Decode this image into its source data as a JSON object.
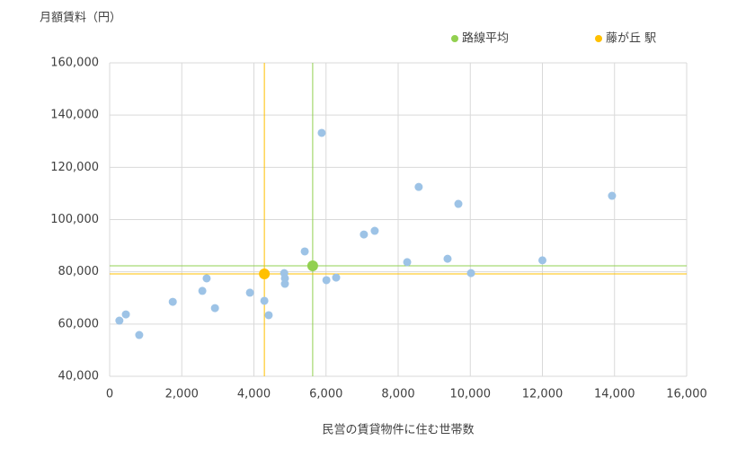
{
  "chart_data": {
    "type": "scatter",
    "title": "月額賃料（円）",
    "x_label": "民営の賃貸物件に住む世帯数",
    "xlim": [
      0,
      16000
    ],
    "xticks": [
      0,
      {
        "value": 2000,
        "label": "2,000"
      },
      {
        "value": 4000,
        "label": "4,000"
      },
      {
        "value": 6000,
        "label": "6,000"
      },
      {
        "value": 8000,
        "label": "8,000"
      },
      {
        "value": 10000,
        "label": "10,000"
      },
      {
        "value": 12000,
        "label": "12,000"
      },
      {
        "value": 14000,
        "label": "14,000"
      },
      {
        "value": 16000,
        "label": "16,000"
      }
    ],
    "ylim": [
      40000,
      160000
    ],
    "yticks": [
      {
        "value": 40000,
        "label": "40,000"
      },
      {
        "value": 60000,
        "label": "60,000"
      },
      {
        "value": 80000,
        "label": "80,000"
      },
      {
        "value": 100000,
        "label": "100,000"
      },
      {
        "value": 120000,
        "label": "120,000"
      },
      {
        "value": 140000,
        "label": "140,000"
      },
      {
        "value": 160000,
        "label": "160,000"
      }
    ],
    "grid": true,
    "legend": "top",
    "series": [
      {
        "color": "#9dc3e6",
        "x": [
          270,
          450,
          820,
          1750,
          2570,
          2690,
          2920,
          3890,
          4290,
          4410,
          4840,
          4860,
          4860,
          5410,
          5880,
          6010,
          6280,
          7050,
          7350,
          8250,
          8570,
          9370,
          9670,
          10020,
          12000,
          13930
        ],
        "values": [
          61300,
          63700,
          55800,
          68500,
          72700,
          77500,
          66100,
          72000,
          68900,
          63400,
          79500,
          77500,
          75400,
          87800,
          133200,
          76800,
          77800,
          94300,
          95700,
          83700,
          112500,
          85000,
          106000,
          79500,
          84400,
          109100
        ]
      },
      {
        "name": "路線平均",
        "color": "#92d050",
        "x": [
          5630
        ],
        "values": [
          82300
        ]
      },
      {
        "name": "藤が丘 駅",
        "color": "#ffc000",
        "x": [
          4290
        ],
        "values": [
          79200
        ]
      }
    ]
  }
}
